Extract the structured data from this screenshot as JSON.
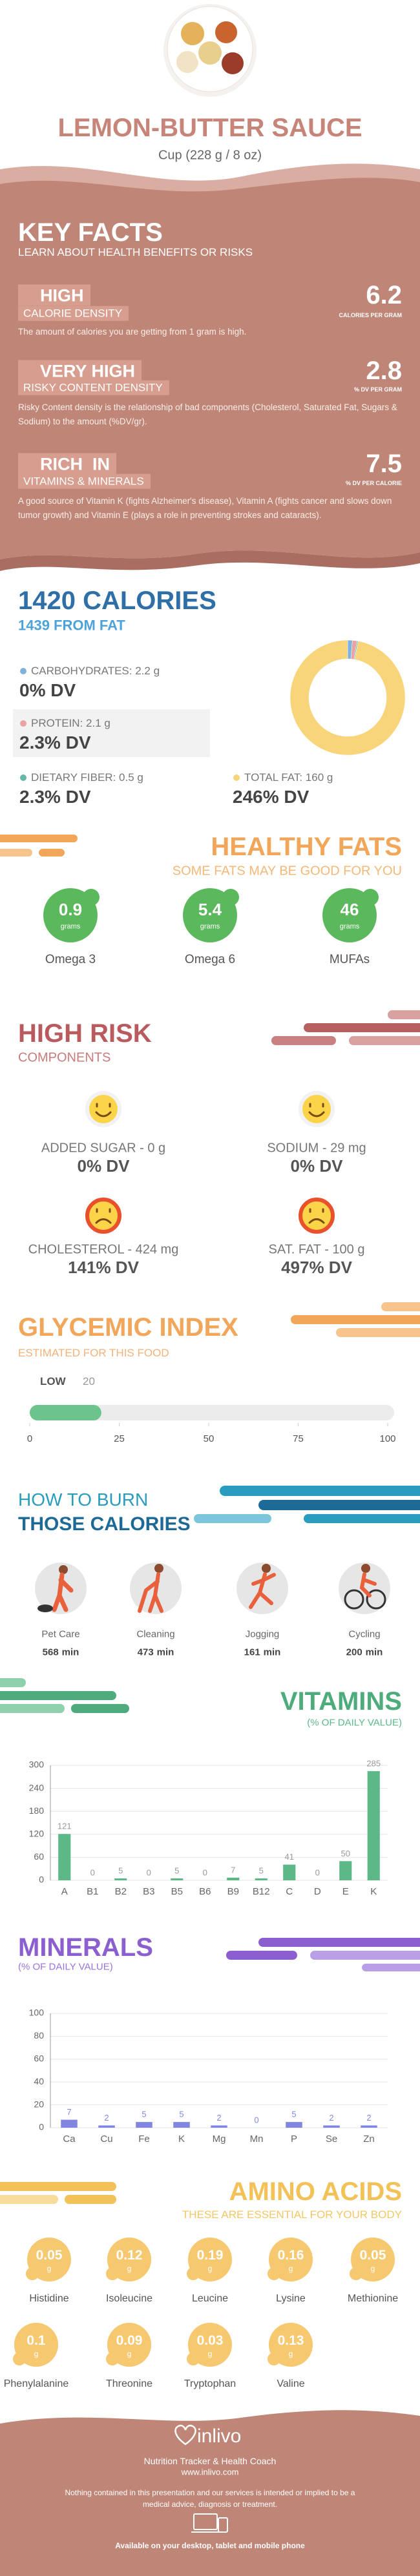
{
  "header": {
    "title": "LEMON-BUTTER SAUCE",
    "serving": "Cup (228 g / 8 oz)"
  },
  "key_facts": {
    "title": "KEY FACTS",
    "subtitle": "LEARN ABOUT HEALTH BENEFITS OR RISKS",
    "items": [
      {
        "level": "HIGH",
        "name": "CALORIE DENSITY",
        "value": 6.2,
        "unit": "CALORIES PER GRAM",
        "description": "The amount of calories you are getting from 1 gram is high."
      },
      {
        "level": "VERY HIGH",
        "name": "RISKY CONTENT DENSITY",
        "value": 2.8,
        "unit": "% DV PER GRAM",
        "description": "Risky Content density is the relationship of bad components (Cholesterol, Saturated Fat, Sugars & Sodium) to the amount (%DV/gr)."
      },
      {
        "level": "RICH  IN",
        "name": "VITAMINS & MINERALS",
        "value": 7.5,
        "unit": "% DV PER CALORIE",
        "description": "A good source of Vitamin K (fights Alzheimer's disease), Vitamin A (fights cancer and slows down tumor growth) and Vitamin E (plays a role in preventing strokes and cataracts)."
      }
    ]
  },
  "calories": {
    "title": "1420 CALORIES",
    "subtitle": "1439 FROM FAT"
  },
  "healthy_fats": {
    "title": "HEALTHY FATS",
    "subtitle": "SOME FATS MAY BE GOOD FOR YOU",
    "unit": "grams",
    "items": [
      {
        "name": "Omega 3",
        "value": 0.9
      },
      {
        "name": "Omega 6",
        "value": 5.4
      },
      {
        "name": "MUFAs",
        "value": 46
      }
    ]
  },
  "high_risk": {
    "title": "HIGH RISK",
    "subtitle": "COMPONENTS",
    "items": [
      {
        "name": "ADDED SUGAR - 0 g",
        "dv": "0% DV"
      },
      {
        "name": "SODIUM - 29 mg",
        "dv": "0% DV"
      },
      {
        "name": "CHOLESTEROL - 424 mg",
        "dv": "141% DV"
      },
      {
        "name": "SAT. FAT - 100 g",
        "dv": "497% DV"
      }
    ]
  },
  "burn": {
    "title_1": "HOW TO BURN",
    "title_2": "THOSE CALORIES",
    "unit": "min",
    "items": [
      {
        "name": "Pet Care",
        "value": 568
      },
      {
        "name": "Cleaning",
        "value": 473
      },
      {
        "name": "Jogging",
        "value": 161
      },
      {
        "name": "Cycling",
        "value": 200
      }
    ]
  },
  "amino_acids": {
    "title": "AMINO ACIDS",
    "subtitle": "THESE ARE ESSENTIAL FOR YOUR BODY",
    "unit": "g",
    "items": [
      {
        "name": "Histidine",
        "value": 0.05
      },
      {
        "name": "Isoleucine",
        "value": 0.12
      },
      {
        "name": "Leucine",
        "value": 0.19
      },
      {
        "name": "Lysine",
        "value": 0.16
      },
      {
        "name": "Methionine",
        "value": 0.05
      },
      {
        "name": "Phenylalanine",
        "value": 0.1
      },
      {
        "name": "Threonine",
        "value": 0.09
      },
      {
        "name": "Tryptophan",
        "value": 0.03
      },
      {
        "name": "Valine",
        "value": 0.13
      }
    ]
  },
  "footer": {
    "brand": "inlivo",
    "tagline": "Nutrition Tracker & Health Coach",
    "url": "www.inlivo.com",
    "disclaimer": "Nothing contained in this presentation and our services is intended or implied to be a medical advice, diagnosis or treatment.",
    "available": "Available on your desktop, tablet and mobile phone"
  },
  "chart_data": [
    {
      "type": "bar",
      "title": "VITAMINS",
      "subtitle": "(% OF DAILY VALUE)",
      "categories": [
        "A",
        "B1",
        "B2",
        "B3",
        "B5",
        "B6",
        "B9",
        "B12",
        "C",
        "D",
        "E",
        "K"
      ],
      "values": [
        121,
        0,
        5,
        0,
        5,
        0,
        7,
        5,
        41,
        0,
        50,
        285
      ],
      "color": "#5cb886",
      "ylim": [
        0,
        300
      ],
      "yticks": [
        0,
        60,
        120,
        180,
        240,
        300
      ],
      "grid": true
    },
    {
      "type": "bar",
      "title": "MINERALS",
      "subtitle": "(% OF DAILY VALUE)",
      "categories": [
        "Ca",
        "Cu",
        "Fe",
        "K",
        "Mg",
        "Mn",
        "P",
        "Se",
        "Zn"
      ],
      "values": [
        7,
        2,
        5,
        5,
        2,
        0,
        5,
        2,
        2
      ],
      "color": "#8187e0",
      "ylim": [
        0,
        100
      ],
      "yticks": [
        0,
        20,
        40,
        60,
        80,
        100
      ],
      "grid": true
    },
    {
      "type": "progress",
      "title": "GLYCEMIC INDEX",
      "subtitle": "ESTIMATED FOR THIS FOOD",
      "label": "LOW",
      "value": 20,
      "color": "#6cc38c",
      "xlim": [
        0,
        100
      ],
      "xticks": [
        0,
        25,
        50,
        75,
        100
      ]
    },
    {
      "type": "donut",
      "categories": [
        "CARBOHYDRATES",
        "PROTEIN",
        "DIETARY FIBER",
        "TOTAL FAT"
      ],
      "values": [
        2.2,
        2.1,
        0.5,
        160
      ],
      "value_labels": [
        "2.2 g",
        "2.1 g",
        "0.5 g",
        "160 g"
      ],
      "dv": [
        "0% DV",
        "2.3% DV",
        "2.3% DV",
        "246% DV"
      ],
      "colors": [
        "#7fb2dd",
        "#eaa3a3",
        "#62b9a5",
        "#f8d47a"
      ]
    }
  ]
}
